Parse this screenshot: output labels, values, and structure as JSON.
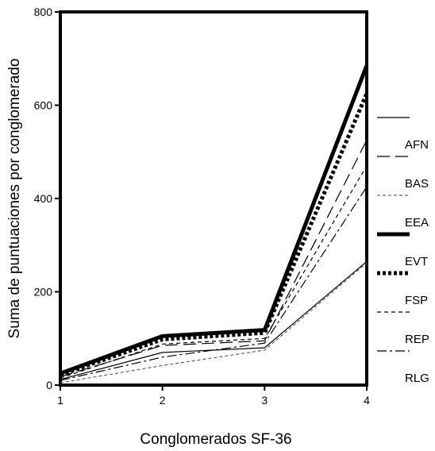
{
  "chart_data": {
    "type": "line",
    "title": "",
    "xlabel": "Conglomerados SF-36",
    "ylabel": "Suma de puntuaciones por conglomerado",
    "x": [
      1,
      2,
      3,
      4
    ],
    "x_tick_labels": [
      "1",
      "2",
      "3",
      "4"
    ],
    "xlim": [
      1,
      4
    ],
    "ylim": [
      0,
      800
    ],
    "y_ticks": [
      0,
      200,
      400,
      600,
      800
    ],
    "y_tick_labels": [
      "0",
      "200",
      "400",
      "600",
      "800"
    ],
    "grid": false,
    "legend_position": "right",
    "series": [
      {
        "name": "AFN",
        "values": [
          12,
          70,
          80,
          265
        ],
        "color": "#000000",
        "style": "solid-thin"
      },
      {
        "name": "BAS",
        "values": [
          18,
          85,
          95,
          525
        ],
        "color": "#000000",
        "style": "long-dash"
      },
      {
        "name": "EEA",
        "values": [
          5,
          42,
          75,
          262
        ],
        "color": "#3a3aa8",
        "style": "short-dash-thin"
      },
      {
        "name": "EVT",
        "values": [
          25,
          105,
          118,
          685
        ],
        "color": "#000000",
        "style": "solid-thick"
      },
      {
        "name": "FSP",
        "values": [
          22,
          98,
          112,
          625
        ],
        "color": "#000000",
        "style": "dotted-thick"
      },
      {
        "name": "REP",
        "values": [
          15,
          88,
          100,
          470
        ],
        "color": "#000000",
        "style": "short-dash"
      },
      {
        "name": "RLG",
        "values": [
          10,
          60,
          90,
          425
        ],
        "color": "#000000",
        "style": "dash-dot"
      }
    ]
  }
}
